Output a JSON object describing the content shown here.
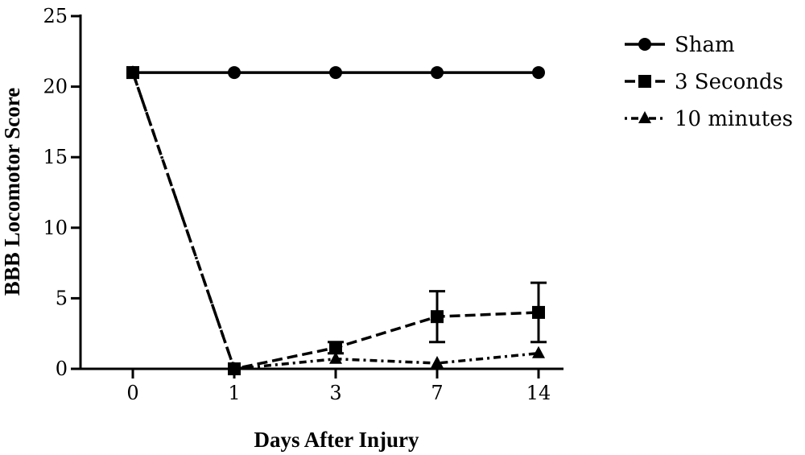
{
  "chart_data": {
    "type": "line",
    "title": "",
    "xlabel": "Days After Injury",
    "ylabel": "BBB Locomotor Score",
    "categories": [
      "0",
      "1",
      "3",
      "7",
      "14"
    ],
    "ylim": [
      0,
      25
    ],
    "yticks": [
      "0",
      "5",
      "10",
      "15",
      "20",
      "25"
    ],
    "grid": false,
    "legend_position": "top-right",
    "series": [
      {
        "name": "Sham",
        "values": [
          21,
          21,
          21,
          21,
          21
        ],
        "errors": [
          0,
          0,
          0,
          0,
          0
        ],
        "marker": "circle",
        "line_style": "solid",
        "color": "#000000"
      },
      {
        "name": "3 Seconds",
        "values": [
          21,
          0,
          1.5,
          3.7,
          4.0
        ],
        "errors": [
          0,
          0,
          0.4,
          1.8,
          2.1
        ],
        "marker": "square",
        "line_style": "dashed",
        "color": "#000000"
      },
      {
        "name": "10 minutes",
        "values": [
          21,
          0,
          0.7,
          0.4,
          1.1
        ],
        "errors": [
          0,
          0,
          0,
          0,
          0
        ],
        "marker": "triangle",
        "line_style": "dotted",
        "color": "#000000"
      }
    ]
  }
}
